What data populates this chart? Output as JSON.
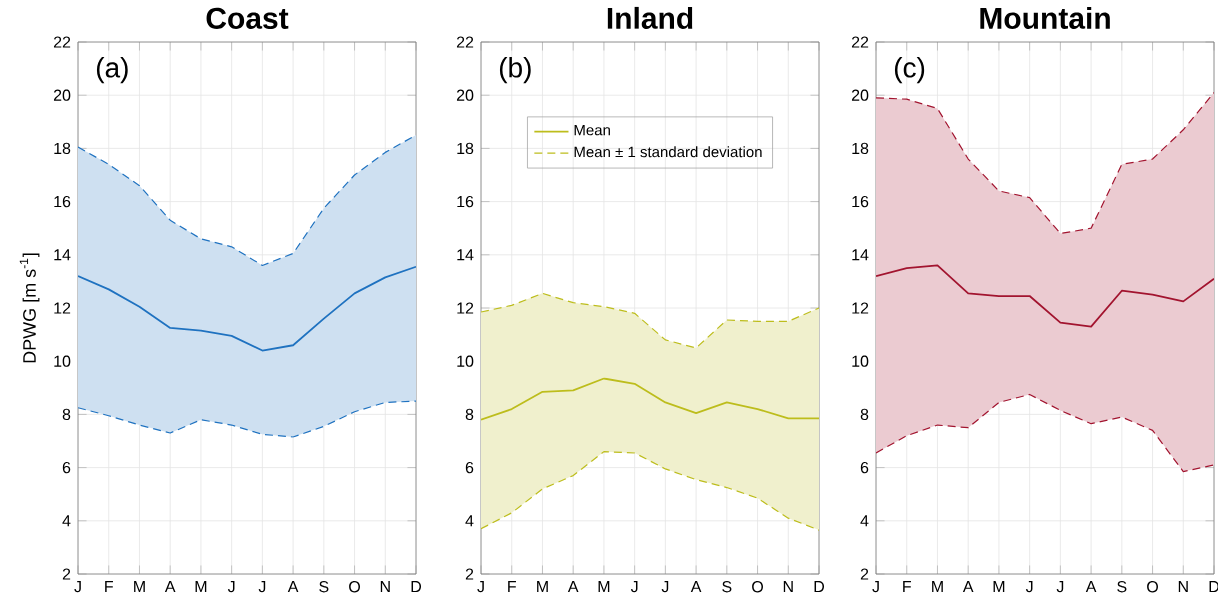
{
  "chart_data": [
    {
      "type": "line",
      "title": "Coast",
      "ylabel": "DPWG [m s$^{-1}$]",
      "annotations": [
        "(a)"
      ],
      "categories": [
        "J",
        "F",
        "M",
        "A",
        "M",
        "J",
        "J",
        "A",
        "S",
        "O",
        "N",
        "D"
      ],
      "ylim": [
        2,
        22
      ],
      "yticks": [
        2,
        4,
        6,
        8,
        10,
        12,
        14,
        16,
        18,
        20,
        22
      ],
      "grid": true,
      "legend": false,
      "series": [
        {
          "color": "#1f72c0",
          "line_style": "solid",
          "values": [
            13.2,
            12.7,
            12.05,
            11.25,
            11.15,
            10.95,
            10.4,
            10.6,
            11.6,
            12.55,
            13.15,
            13.55
          ],
          "lower": [
            8.25,
            7.95,
            7.6,
            7.3,
            7.8,
            7.6,
            7.25,
            7.15,
            7.55,
            8.1,
            8.45,
            8.5
          ],
          "upper": [
            18.05,
            17.4,
            16.6,
            15.3,
            14.6,
            14.3,
            13.6,
            14.05,
            15.75,
            17.0,
            17.85,
            18.5
          ]
        },
        {
          "color": "#1f72c0",
          "line_style": "dashed",
          "values": [
            18.05,
            17.4,
            16.6,
            15.3,
            14.6,
            14.3,
            13.6,
            14.05,
            15.75,
            17.0,
            17.85,
            18.5
          ]
        },
        {
          "color": "#1f72c0",
          "line_style": "dashed",
          "values": [
            8.25,
            7.95,
            7.6,
            7.3,
            7.8,
            7.6,
            7.25,
            7.15,
            7.55,
            8.1,
            8.45,
            8.5
          ]
        }
      ]
    },
    {
      "type": "line",
      "title": "Inland",
      "annotations": [
        "(b)"
      ],
      "categories": [
        "J",
        "F",
        "M",
        "A",
        "M",
        "J",
        "J",
        "A",
        "S",
        "O",
        "N",
        "D"
      ],
      "ylim": [
        2,
        22
      ],
      "yticks": [
        2,
        4,
        6,
        8,
        10,
        12,
        14,
        16,
        18,
        20,
        22
      ],
      "grid": true,
      "legend": "top",
      "series": [
        {
          "name": "Mean",
          "color": "#bdbd1c",
          "line_style": "solid",
          "values": [
            7.8,
            8.2,
            8.85,
            8.9,
            9.35,
            9.15,
            8.45,
            8.05,
            8.45,
            8.2,
            7.85,
            7.85
          ],
          "lower": [
            3.7,
            4.3,
            5.2,
            5.7,
            6.6,
            6.55,
            5.95,
            5.55,
            5.25,
            4.85,
            4.1,
            3.65
          ],
          "upper": [
            11.85,
            12.1,
            12.55,
            12.2,
            12.05,
            11.8,
            10.8,
            10.5,
            11.55,
            11.5,
            11.5,
            12.0
          ]
        },
        {
          "name": "Mean ± 1 standard deviation",
          "color": "#bdbd1c",
          "line_style": "dashed",
          "values": [
            11.85,
            12.1,
            12.55,
            12.2,
            12.05,
            11.8,
            10.8,
            10.5,
            11.55,
            11.5,
            11.5,
            12.0
          ]
        },
        {
          "color": "#bdbd1c",
          "line_style": "dashed",
          "values": [
            3.7,
            4.3,
            5.2,
            5.7,
            6.6,
            6.55,
            5.95,
            5.55,
            5.25,
            4.85,
            4.1,
            3.65
          ]
        }
      ]
    },
    {
      "type": "line",
      "title": "Mountain",
      "annotations": [
        "(c)"
      ],
      "categories": [
        "J",
        "F",
        "M",
        "A",
        "M",
        "J",
        "J",
        "A",
        "S",
        "O",
        "N",
        "D"
      ],
      "ylim": [
        2,
        22
      ],
      "yticks": [
        2,
        4,
        6,
        8,
        10,
        12,
        14,
        16,
        18,
        20,
        22
      ],
      "grid": true,
      "legend": false,
      "series": [
        {
          "color": "#a2142f",
          "line_style": "solid",
          "values": [
            13.2,
            13.5,
            13.6,
            12.55,
            12.45,
            12.45,
            11.45,
            11.3,
            12.65,
            12.5,
            12.25,
            13.1
          ],
          "lower": [
            6.55,
            7.2,
            7.6,
            7.5,
            8.45,
            8.75,
            8.15,
            7.65,
            7.9,
            7.4,
            5.85,
            6.1
          ],
          "upper": [
            19.9,
            19.85,
            19.5,
            17.6,
            16.4,
            16.15,
            14.8,
            15.0,
            17.4,
            17.6,
            18.7,
            20.1
          ]
        },
        {
          "color": "#a2142f",
          "line_style": "dashed",
          "values": [
            19.9,
            19.85,
            19.5,
            17.6,
            16.4,
            16.15,
            14.8,
            15.0,
            17.4,
            17.6,
            18.7,
            20.1
          ]
        },
        {
          "color": "#a2142f",
          "line_style": "dashed",
          "values": [
            6.55,
            7.2,
            7.6,
            7.5,
            8.45,
            8.75,
            8.15,
            7.65,
            7.9,
            7.4,
            5.85,
            6.1
          ]
        }
      ]
    }
  ]
}
